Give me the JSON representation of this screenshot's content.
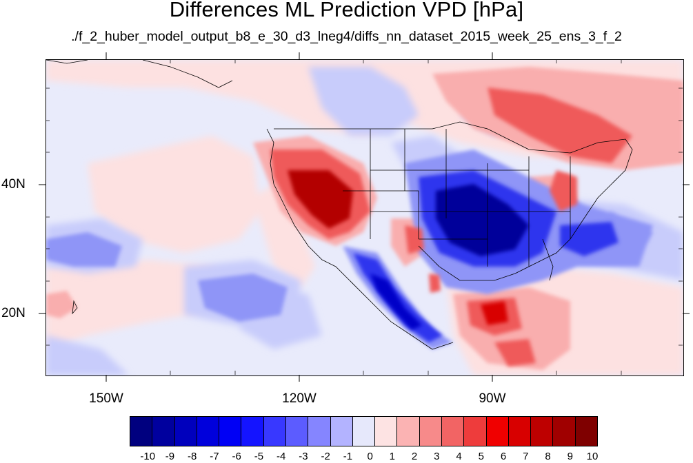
{
  "title": "Differences ML Prediction VPD [hPa]",
  "subtitle": "./f_2_huber_model_output_b8_e_30_d3_lneg4/diffs_nn_dataset_2015_week_25_ens_3_f_2",
  "axes": {
    "lat_labels": [
      "40N",
      "20N"
    ],
    "lon_labels": [
      "150W",
      "120W",
      "90W"
    ]
  },
  "colorbar": {
    "labels": [
      "-10",
      "-9",
      "-8",
      "-7",
      "-6",
      "-5",
      "-4",
      "-3",
      "-2",
      "-1",
      "0",
      "1",
      "2",
      "3",
      "4",
      "5",
      "6",
      "7",
      "8",
      "9",
      "10"
    ],
    "colors": [
      "#00007f",
      "#00009e",
      "#0000bd",
      "#0000dc",
      "#0000f5",
      "#1414ff",
      "#3838ff",
      "#5c5cff",
      "#8585ff",
      "#b3b3ff",
      "#e6e8fb",
      "#fde3e3",
      "#fbb3b3",
      "#f78a8a",
      "#f26464",
      "#ee3c3c",
      "#f00000",
      "#d80000",
      "#be0000",
      "#a00000",
      "#7f0000"
    ]
  },
  "map": {
    "background_color": "#e9ebfb",
    "warm_light": "#fde1e1",
    "warm_mid": "#f9aeae",
    "warm_strong": "#ef5a5a",
    "warm_max": "#b30000",
    "cool_light": "#c8ccfb",
    "cool_mid": "#8f95f7",
    "cool_strong": "#2f35ee",
    "cool_max": "#00009a"
  }
}
